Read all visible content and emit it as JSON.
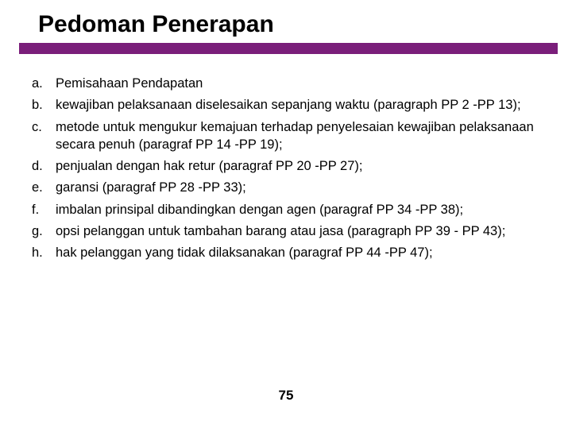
{
  "slide": {
    "title": "Pedoman Penerapan",
    "accent_color": "#7a1e7a",
    "background_color": "#ffffff",
    "text_color": "#000000",
    "title_fontsize": 30,
    "body_fontsize": 16.5,
    "page_number": "75",
    "items": [
      {
        "marker": "a.",
        "text": "Pemisahaan Pendapatan"
      },
      {
        "marker": "b.",
        "text": "kewajiban pelaksanaan diselesaikan sepanjang waktu (paragraph PP 2 -PP 13);"
      },
      {
        "marker": "c.",
        "text": "metode untuk mengukur kemajuan terhadap penyelesaian kewajiban pelaksanaan secara penuh (paragraf PP 14 -PP 19);"
      },
      {
        "marker": "d.",
        "text": "penjualan dengan hak retur (paragraf PP 20 -PP 27);"
      },
      {
        "marker": "e.",
        "text": "garansi (paragraf PP 28 -PP 33);"
      },
      {
        "marker": "f.",
        "text": "imbalan prinsipal dibandingkan dengan agen (paragraf PP 34 -PP 38);"
      },
      {
        "marker": "g.",
        "text": "opsi pelanggan untuk tambahan barang atau jasa (paragraph PP 39 - PP 43);"
      },
      {
        "marker": "h.",
        "text": "hak pelanggan yang tidak dilaksanakan (paragraf PP 44 -PP 47);"
      }
    ]
  }
}
